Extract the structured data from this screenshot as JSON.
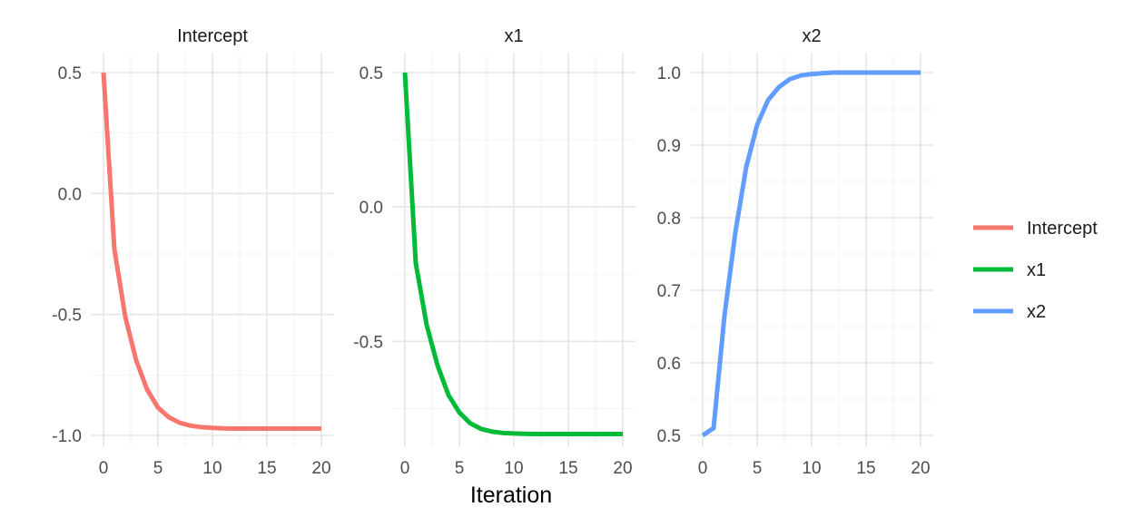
{
  "chart_data": {
    "type": "line",
    "layout": "facets",
    "xlabel": "Iteration",
    "ylabel": "",
    "grid": true,
    "legend_position": "right",
    "x": [
      0,
      1,
      2,
      3,
      4,
      5,
      6,
      7,
      8,
      9,
      10,
      11,
      12,
      13,
      14,
      15,
      16,
      17,
      18,
      19,
      20
    ],
    "facets": [
      {
        "title": "Intercept",
        "color": "#F8766D",
        "xlim": [
          0,
          20
        ],
        "ylim": [
          -1.0,
          0.5
        ],
        "x_ticks": [
          "0",
          "5",
          "10",
          "15",
          "20"
        ],
        "y_ticks": [
          "-1.0",
          "-0.5",
          "0.0",
          "0.5"
        ],
        "y_tick_values": [
          -1.0,
          -0.5,
          0.0,
          0.5
        ],
        "values": [
          0.5,
          -0.23,
          -0.51,
          -0.69,
          -0.81,
          -0.885,
          -0.925,
          -0.948,
          -0.96,
          -0.966,
          -0.969,
          -0.971,
          -0.972,
          -0.972,
          -0.972,
          -0.972,
          -0.972,
          -0.972,
          -0.972,
          -0.972,
          -0.972
        ]
      },
      {
        "title": "x1",
        "color": "#00BA38",
        "xlim": [
          0,
          20
        ],
        "ylim": [
          -0.85,
          0.5
        ],
        "x_ticks": [
          "0",
          "5",
          "10",
          "15",
          "20"
        ],
        "y_ticks": [
          "-0.5",
          "0.0",
          "0.5"
        ],
        "y_tick_values": [
          -0.5,
          0.0,
          0.5
        ],
        "values": [
          0.5,
          -0.21,
          -0.44,
          -0.59,
          -0.7,
          -0.765,
          -0.805,
          -0.826,
          -0.836,
          -0.841,
          -0.843,
          -0.844,
          -0.845,
          -0.845,
          -0.845,
          -0.845,
          -0.845,
          -0.845,
          -0.845,
          -0.845,
          -0.845
        ]
      },
      {
        "title": "x2",
        "color": "#619CFF",
        "xlim": [
          0,
          20
        ],
        "ylim": [
          0.5,
          1.0
        ],
        "x_ticks": [
          "0",
          "5",
          "10",
          "15",
          "20"
        ],
        "y_ticks": [
          "0.5",
          "0.6",
          "0.7",
          "0.8",
          "0.9",
          "1.0"
        ],
        "y_tick_values": [
          0.5,
          0.6,
          0.7,
          0.8,
          0.9,
          1.0
        ],
        "values": [
          0.5,
          0.51,
          0.665,
          0.78,
          0.87,
          0.928,
          0.962,
          0.98,
          0.991,
          0.996,
          0.998,
          0.999,
          1.0,
          1.0,
          1.0,
          1.0,
          1.0,
          1.0,
          1.0,
          1.0,
          1.0
        ]
      }
    ],
    "legend": [
      {
        "label": "Intercept",
        "color": "#F8766D"
      },
      {
        "label": "x1",
        "color": "#00BA38"
      },
      {
        "label": "x2",
        "color": "#619CFF"
      }
    ]
  }
}
